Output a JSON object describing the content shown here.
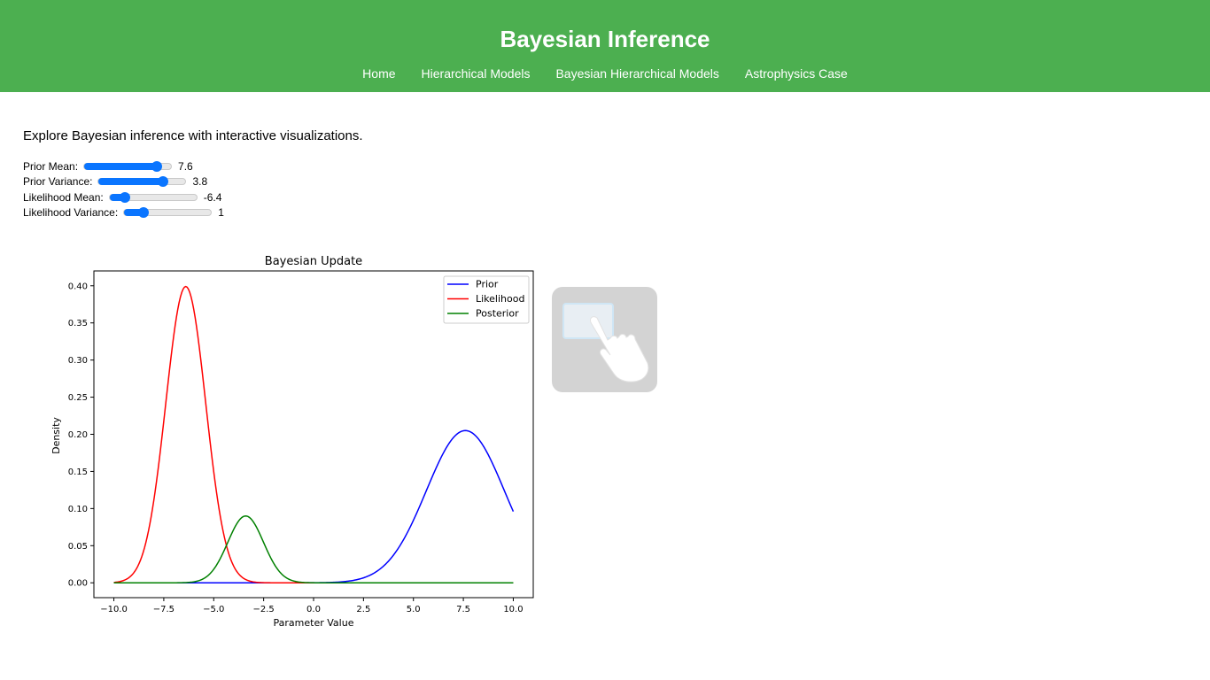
{
  "header": {
    "title": "Bayesian Inference",
    "nav": [
      "Home",
      "Hierarchical Models",
      "Bayesian Hierarchical Models",
      "Astrophysics Case"
    ]
  },
  "intro": "Explore Bayesian inference with interactive visualizations.",
  "controls": [
    {
      "label": "Prior Mean:",
      "value": "7.6",
      "fraction": 0.84
    },
    {
      "label": "Prior Variance:",
      "value": "3.8",
      "fraction": 0.74
    },
    {
      "label": "Likelihood Mean:",
      "value": "-6.4",
      "fraction": 0.18
    },
    {
      "label": "Likelihood Variance:",
      "value": "1",
      "fraction": 0.22
    }
  ],
  "tap_hint_icon": "tap-gesture-icon",
  "chart_data": {
    "type": "line",
    "title": "Bayesian Update",
    "xlabel": "Parameter Value",
    "ylabel": "Density",
    "xlim": [
      -11,
      11
    ],
    "ylim": [
      -0.02,
      0.42
    ],
    "xticks": [
      -10,
      -7.5,
      -5,
      -2.5,
      0,
      2.5,
      5,
      7.5,
      10
    ],
    "xtick_labels": [
      "−10.0",
      "−7.5",
      "−5.0",
      "−2.5",
      "0.0",
      "2.5",
      "5.0",
      "7.5",
      "10.0"
    ],
    "yticks": [
      0,
      0.05,
      0.1,
      0.15,
      0.2,
      0.25,
      0.3,
      0.35,
      0.4
    ],
    "ytick_labels": [
      "0.00",
      "0.05",
      "0.10",
      "0.15",
      "0.20",
      "0.25",
      "0.30",
      "0.35",
      "0.40"
    ],
    "grid": false,
    "legend": "top-right",
    "series": [
      {
        "name": "Prior",
        "color": "#0000ff",
        "mean": 7.6,
        "variance": 3.8,
        "peak": 0.205
      },
      {
        "name": "Likelihood",
        "color": "#ff0000",
        "mean": -6.4,
        "variance": 1,
        "peak": 0.399
      },
      {
        "name": "Posterior",
        "color": "#008000",
        "mean": -3.4,
        "variance": 0.8,
        "peak": 0.09
      }
    ]
  }
}
